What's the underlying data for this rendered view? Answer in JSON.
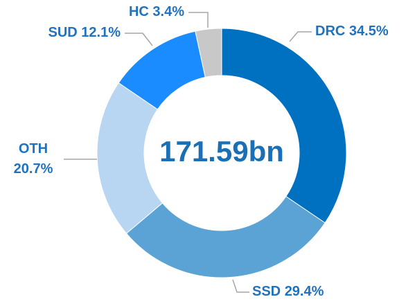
{
  "chart_data": {
    "type": "donut",
    "center_label": "171.59bn",
    "categories": [
      "DRC",
      "SSD",
      "OTH",
      "SUD",
      "HC"
    ],
    "values": [
      34.5,
      29.4,
      20.7,
      12.1,
      3.4
    ],
    "value_labels": [
      "34.5%",
      "29.4%",
      "20.7%",
      "12.1%",
      "3.4%"
    ],
    "colors": [
      "#0070c0",
      "#5ba3d5",
      "#b8d6f1",
      "#1a8cff",
      "#c8c8c8"
    ]
  }
}
